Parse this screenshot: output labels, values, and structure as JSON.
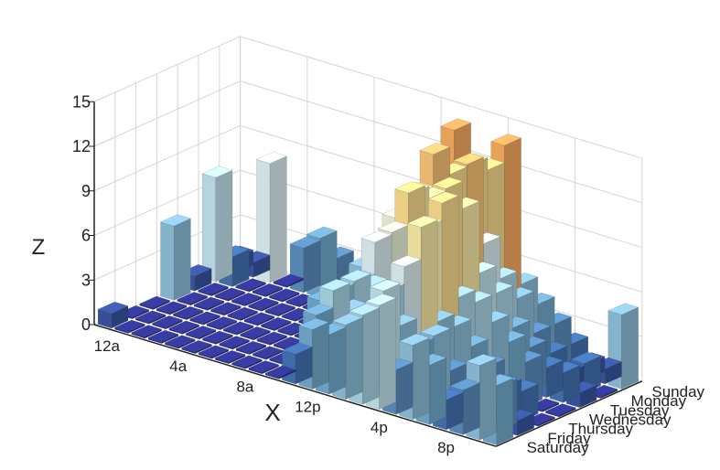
{
  "chart_data": {
    "type": "bar3d",
    "xlabel": "X",
    "ylabel": "",
    "zlabel": "Z",
    "x_ticks": [
      "12a",
      "4a",
      "8a",
      "12p",
      "4p",
      "8p"
    ],
    "x_tick_hours": [
      0,
      4,
      8,
      12,
      16,
      20
    ],
    "hours": [
      0,
      1,
      2,
      3,
      4,
      5,
      6,
      7,
      8,
      9,
      10,
      11,
      12,
      13,
      14,
      15,
      16,
      17,
      18,
      19,
      20,
      21,
      22,
      23
    ],
    "days": [
      "Saturday",
      "Friday",
      "Thursday",
      "Wednesday",
      "Tuesday",
      "Monday",
      "Sunday"
    ],
    "z_ticks": [
      0,
      3,
      6,
      9,
      12,
      15
    ],
    "zlim": [
      0,
      15
    ],
    "grid": true,
    "colormap": [
      "#313695",
      "#4575b4",
      "#74add1",
      "#abd9e9",
      "#e0f3f8",
      "#ffffbf",
      "#fee090",
      "#fdae61",
      "#f46d43",
      "#d73027",
      "#a50026"
    ],
    "values_by_day": [
      [
        1,
        0,
        0,
        0,
        0,
        0,
        0,
        0,
        0,
        0,
        0,
        2,
        4,
        4,
        5,
        6,
        7,
        3,
        5,
        4,
        2,
        3,
        5,
        4
      ],
      [
        0,
        0,
        0,
        0,
        0,
        0,
        0,
        0,
        0,
        0,
        0,
        4,
        6,
        5,
        5,
        7,
        5,
        4,
        5,
        3,
        2,
        1,
        3,
        1
      ],
      [
        0,
        0,
        0,
        0,
        0,
        0,
        0,
        0,
        0,
        0,
        4,
        5,
        6,
        6,
        6,
        8,
        11,
        5,
        5,
        4,
        3,
        2,
        2,
        0
      ],
      [
        5,
        0,
        0,
        0,
        0,
        0,
        0,
        0,
        0,
        0,
        4,
        5,
        8,
        9,
        12,
        10,
        12,
        6,
        6,
        5,
        4,
        3,
        0,
        0
      ],
      [
        1,
        0,
        0,
        0,
        0,
        0,
        0,
        0,
        0,
        0,
        5,
        6,
        9,
        11,
        11,
        12,
        11,
        7,
        6,
        4,
        3,
        2,
        2,
        1
      ],
      [
        7,
        2,
        0,
        0,
        0,
        0,
        0,
        0,
        0,
        0,
        4,
        6,
        10,
        13,
        12,
        13,
        8,
        6,
        5,
        3,
        2,
        1,
        2,
        0
      ],
      [
        1,
        1,
        8,
        0,
        3,
        4,
        3,
        1,
        3,
        0,
        0,
        0,
        6,
        14,
        12,
        12,
        14,
        5,
        4,
        3,
        2,
        1,
        1,
        5
      ]
    ]
  }
}
